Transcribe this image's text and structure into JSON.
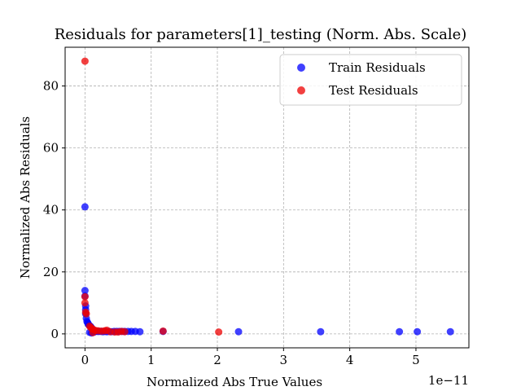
{
  "chart_data": {
    "type": "scatter",
    "title": "Residuals for parameters[1]_testing (Norm. Abs. Scale)",
    "xlabel": "Normalized Abs True Values",
    "ylabel": "Normalized Abs Residuals",
    "x_offset_text": "1e−11",
    "xlim": [
      -0.3,
      5.8
    ],
    "ylim": [
      -4.5,
      92.5
    ],
    "x_ticks": [
      0,
      1,
      2,
      3,
      4,
      5
    ],
    "x_tick_labels": [
      "0",
      "1",
      "2",
      "3",
      "4",
      "5"
    ],
    "y_ticks": [
      0,
      20,
      40,
      60,
      80
    ],
    "y_tick_labels": [
      "0",
      "20",
      "40",
      "60",
      "80"
    ],
    "grid": true,
    "legend_position": "top-right",
    "series": [
      {
        "name": "Train Residuals",
        "color": "#0000ff",
        "points": [
          [
            0.0,
            41.0
          ],
          [
            0.0,
            14.0
          ],
          [
            0.0,
            12.2
          ],
          [
            0.01,
            9.0
          ],
          [
            0.01,
            7.8
          ],
          [
            0.01,
            6.5
          ],
          [
            0.02,
            5.0
          ],
          [
            0.03,
            4.0
          ],
          [
            0.04,
            3.6
          ],
          [
            0.05,
            3.2
          ],
          [
            0.06,
            2.8
          ],
          [
            0.08,
            2.5
          ],
          [
            0.09,
            2.2
          ],
          [
            0.1,
            1.9
          ],
          [
            0.11,
            1.6
          ],
          [
            0.12,
            1.4
          ],
          [
            0.13,
            1.2
          ],
          [
            0.15,
            1.0
          ],
          [
            0.17,
            0.9
          ],
          [
            0.19,
            0.8
          ],
          [
            0.21,
            0.8
          ],
          [
            0.24,
            0.8
          ],
          [
            0.27,
            0.7
          ],
          [
            0.3,
            0.8
          ],
          [
            0.33,
            0.7
          ],
          [
            0.36,
            0.8
          ],
          [
            0.4,
            0.7
          ],
          [
            0.44,
            0.8
          ],
          [
            0.48,
            0.8
          ],
          [
            0.52,
            0.8
          ],
          [
            0.56,
            0.8
          ],
          [
            0.6,
            0.8
          ],
          [
            0.65,
            0.8
          ],
          [
            0.7,
            0.8
          ],
          [
            0.76,
            0.8
          ],
          [
            0.83,
            0.7
          ],
          [
            1.18,
            0.8
          ],
          [
            2.32,
            0.7
          ],
          [
            3.56,
            0.7
          ],
          [
            4.75,
            0.7
          ],
          [
            5.02,
            0.7
          ],
          [
            5.52,
            0.7
          ],
          [
            0.07,
            0.5
          ],
          [
            0.1,
            0.3
          ],
          [
            0.14,
            0.6
          ]
        ]
      },
      {
        "name": "Test Residuals",
        "color": "#ee0000",
        "points": [
          [
            0.0,
            88.0
          ],
          [
            0.0,
            12.0
          ],
          [
            0.0,
            10.0
          ],
          [
            0.01,
            7.0
          ],
          [
            0.02,
            6.5
          ],
          [
            0.07,
            2.5
          ],
          [
            0.09,
            2.0
          ],
          [
            0.11,
            1.6
          ],
          [
            0.13,
            1.3
          ],
          [
            0.16,
            1.1
          ],
          [
            0.2,
            1.0
          ],
          [
            0.25,
            0.9
          ],
          [
            0.3,
            1.0
          ],
          [
            0.33,
            1.2
          ],
          [
            0.38,
            0.7
          ],
          [
            0.45,
            0.6
          ],
          [
            0.5,
            0.6
          ],
          [
            0.55,
            0.8
          ],
          [
            0.6,
            0.7
          ],
          [
            1.18,
            0.9
          ],
          [
            2.02,
            0.6
          ],
          [
            0.12,
            0.4
          ]
        ]
      }
    ]
  }
}
